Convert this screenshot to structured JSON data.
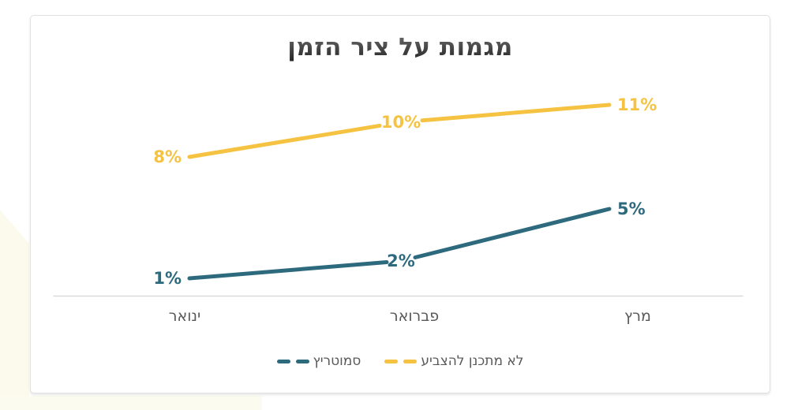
{
  "chart_data": {
    "type": "line",
    "title": "מגמות על ציר הזמן",
    "categories": [
      "ינואר",
      "פברואר",
      "מרץ"
    ],
    "series": [
      {
        "name": "לא מתכנן להצביע",
        "values": [
          8,
          10,
          11
        ],
        "labels": [
          "8%",
          "10%",
          "11%"
        ],
        "color": "#F5C341"
      },
      {
        "name": "סמוטריץ",
        "values": [
          1,
          2,
          5
        ],
        "labels": [
          "1%",
          "2%",
          "5%"
        ],
        "color": "#2E6A7E"
      }
    ],
    "ylim": [
      0,
      13
    ],
    "grid": false,
    "legend_position": "bottom",
    "direction": "rtl",
    "axis_color": "#D9D9D9",
    "text_color": "#595959"
  },
  "legend": {
    "order_note": "smotrich shown first (left), then not-planning-to-vote"
  }
}
